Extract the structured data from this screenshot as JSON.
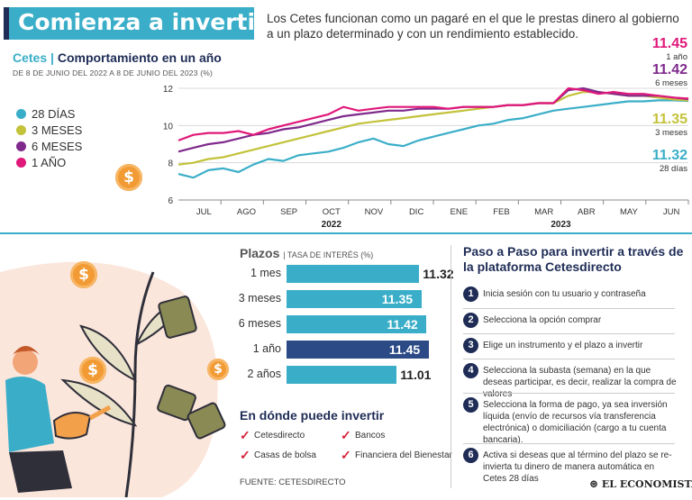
{
  "header": {
    "title": "Comienza a invertir",
    "intro": "Los Cetes funcionan como un pagaré en el que le prestas dinero al gobierno a un plazo determinado y con un rendimiento establecido."
  },
  "chart_heading": {
    "series_label": "Cetes",
    "sep": "|",
    "title": "Comportamiento en un año",
    "subtitle": "DE 8 DE JUNIO DEL 2022 A 8 DE JUNIO DEL 2023 (%)"
  },
  "chart_data": {
    "type": "line",
    "title": "Comportamiento en un año",
    "xlabel": "",
    "ylabel": "%",
    "ylim": [
      6,
      12
    ],
    "yticks": [
      "6",
      "8",
      "10",
      "12"
    ],
    "months": [
      "JUL",
      "AGO",
      "SEP",
      "OCT",
      "NOV",
      "DIC",
      "ENE",
      "FEB",
      "MAR",
      "ABR",
      "MAY",
      "JUN"
    ],
    "years": [
      "2022",
      "2023"
    ],
    "series": [
      {
        "name": "28 DÍAS",
        "color": "#3aaec8",
        "end_value": "11.32",
        "end_label": "28 días",
        "values": [
          7.4,
          7.2,
          7.6,
          7.7,
          7.5,
          7.9,
          8.2,
          8.1,
          8.4,
          8.5,
          8.6,
          8.8,
          9.1,
          9.3,
          9.0,
          8.9,
          9.2,
          9.4,
          9.6,
          9.8,
          10.0,
          10.1,
          10.3,
          10.4,
          10.6,
          10.8,
          10.9,
          11.0,
          11.1,
          11.2,
          11.3,
          11.3,
          11.35,
          11.35,
          11.32
        ]
      },
      {
        "name": "3 MESES",
        "color": "#c3c23a",
        "end_value": "11.35",
        "end_label": "3 meses",
        "values": [
          7.9,
          8.0,
          8.2,
          8.3,
          8.5,
          8.7,
          8.9,
          9.1,
          9.3,
          9.5,
          9.7,
          9.9,
          10.1,
          10.2,
          10.3,
          10.4,
          10.5,
          10.6,
          10.7,
          10.8,
          10.9,
          11.0,
          11.1,
          11.1,
          11.2,
          11.2,
          11.6,
          11.8,
          11.8,
          11.7,
          11.6,
          11.6,
          11.5,
          11.4,
          11.35
        ]
      },
      {
        "name": "6 MESES",
        "color": "#7f2a8c",
        "end_value": "11.42",
        "end_label": "6 meses",
        "values": [
          8.6,
          8.8,
          9.0,
          9.1,
          9.3,
          9.5,
          9.6,
          9.8,
          9.9,
          10.1,
          10.3,
          10.5,
          10.6,
          10.7,
          10.8,
          10.8,
          10.9,
          10.9,
          10.9,
          11.0,
          11.0,
          11.0,
          11.1,
          11.1,
          11.2,
          11.2,
          11.9,
          12.0,
          11.8,
          11.7,
          11.6,
          11.6,
          11.6,
          11.5,
          11.42
        ]
      },
      {
        "name": "1 AÑO",
        "color": "#e0187a",
        "end_value": "11.45",
        "end_label": "1 año",
        "values": [
          9.2,
          9.5,
          9.6,
          9.6,
          9.7,
          9.5,
          9.8,
          10.0,
          10.2,
          10.4,
          10.6,
          11.0,
          10.8,
          10.9,
          11.0,
          11.0,
          11.0,
          11.0,
          10.9,
          11.0,
          11.0,
          11.0,
          11.1,
          11.1,
          11.2,
          11.2,
          12.0,
          11.9,
          11.7,
          11.8,
          11.7,
          11.7,
          11.6,
          11.5,
          11.45
        ]
      }
    ]
  },
  "plazos": {
    "title": "Plazos",
    "subtitle": "| TASA DE INTERÉS (%)",
    "items": [
      {
        "label": "1 mes",
        "value": 11.32,
        "display": "11.32",
        "color": "#3aaec8"
      },
      {
        "label": "3 meses",
        "value": 11.35,
        "display": "11.35",
        "color": "#3aaec8"
      },
      {
        "label": "6 meses",
        "value": 11.42,
        "display": "11.42",
        "color": "#3aaec8"
      },
      {
        "label": "1 año",
        "value": 11.45,
        "display": "11.45",
        "color": "#2b4a86"
      },
      {
        "label": "2 años",
        "value": 11.01,
        "display": "11.01",
        "color": "#3aaec8"
      }
    ]
  },
  "invest": {
    "title": "En dónde puede invertir",
    "options": [
      "Cetesdirecto",
      "Bancos",
      "Casas de bolsa",
      "Financiera del Bienestar"
    ]
  },
  "steps": {
    "title": "Paso a Paso para invertir a través de la plataforma Cetesdirecto",
    "items": [
      {
        "num": "1",
        "text": "Inicia sesión con tu usuario y contraseña"
      },
      {
        "num": "2",
        "text": "Selecciona la opción comprar"
      },
      {
        "num": "3",
        "text": "Elige un instrumento y el plazo a invertir"
      },
      {
        "num": "4",
        "text": "Selecciona la subasta (semana) en la que deseas participar, es decir, realizar la compra de valores"
      },
      {
        "num": "5",
        "text": "Selecciona la forma de pago, ya sea inversión líquida (envío de recursos vía transferencia electrónica) o domiciliación (cargo a tu cuenta bancaria)."
      },
      {
        "num": "6",
        "text": "Activa si deseas que al término del plazo se re-invierta tu dinero de manera automática en Cetes 28 días"
      }
    ]
  },
  "source": "FUENTE: CETESDIRECTO",
  "logo": "EL ECONOMISTA",
  "coin_symbol": "$"
}
